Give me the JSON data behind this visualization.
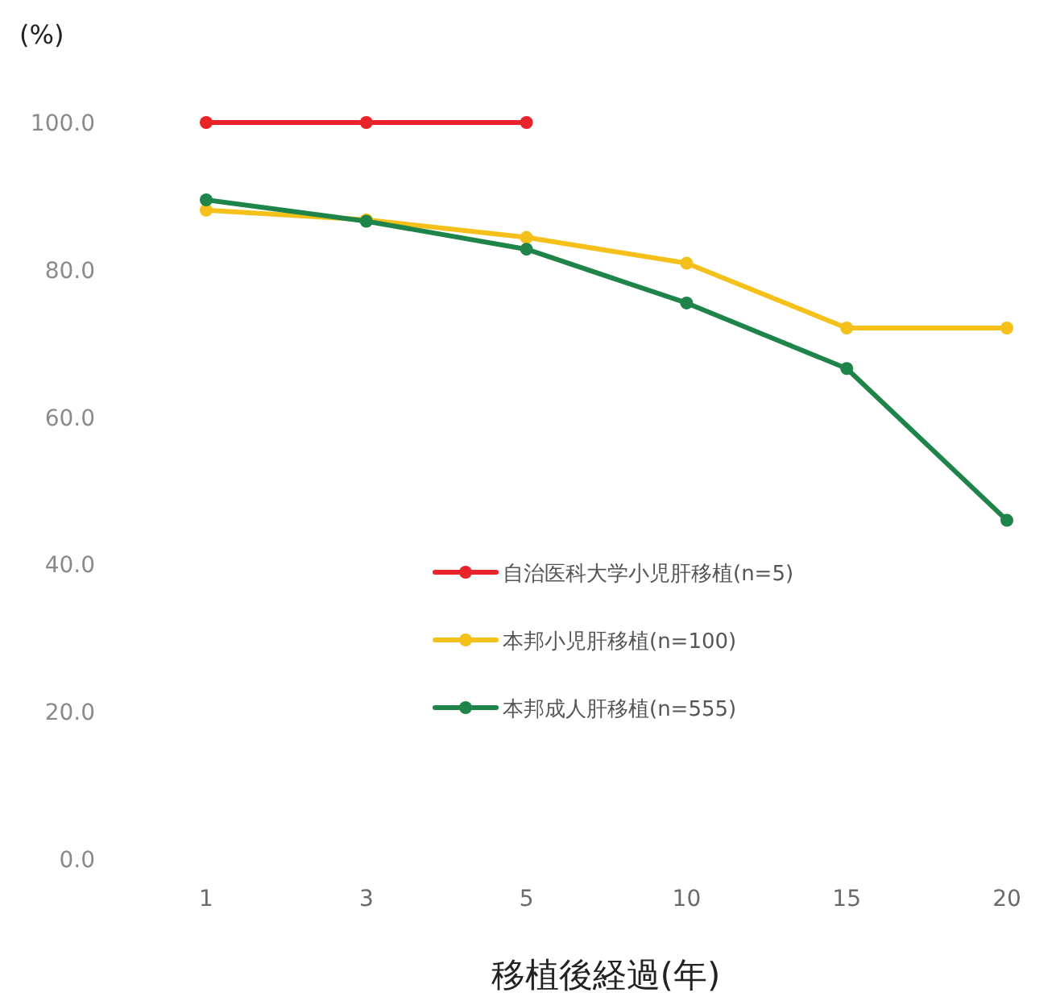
{
  "chart_data": {
    "type": "line",
    "xlabel": "移植後経過(年)",
    "ylabel": "(%)",
    "categories": [
      "1",
      "3",
      "5",
      "10",
      "15",
      "20"
    ],
    "series": [
      {
        "name": "自治医科大学小児肝移植(n=5)",
        "color": "#e8232a",
        "values": [
          100,
          100,
          100,
          null,
          null,
          null
        ]
      },
      {
        "name": "本邦小児肝移植(n=100)",
        "color": "#f5c01a",
        "values": [
          88.1,
          86.8,
          84.4,
          80.9,
          72.1,
          72.1
        ]
      },
      {
        "name": "本邦成人肝移植(n=555)",
        "color": "#1e8449",
        "values": [
          89.5,
          86.6,
          82.8,
          75.5,
          66.6,
          46.0
        ]
      }
    ],
    "ylim": [
      0,
      100
    ],
    "yticks": [
      {
        "value": 0,
        "label": "0.0"
      },
      {
        "value": 20,
        "label": "20.0"
      },
      {
        "value": 40,
        "label": "40.0"
      },
      {
        "value": 60,
        "label": "60.0"
      },
      {
        "value": 80,
        "label": "80.0"
      },
      {
        "value": 100,
        "label": "100.0"
      }
    ],
    "grid": false,
    "legend": "center",
    "marker": "circle",
    "line_style": "solid"
  }
}
